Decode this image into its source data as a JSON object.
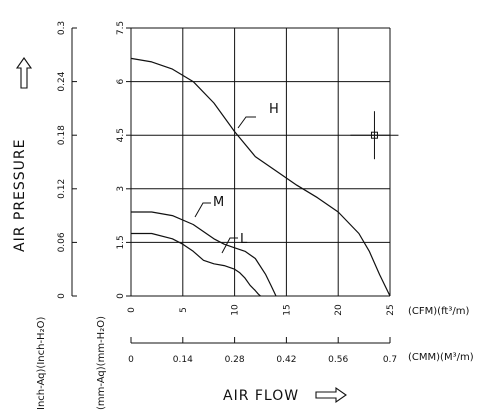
{
  "chart_data": {
    "type": "line",
    "title": "",
    "xlabel": "AIR FLOW",
    "ylabel": "AIR PRESSURE",
    "grid": true,
    "x_unit_cfm": "(CFM)(ft³/m)",
    "x_unit_cmm": "(CMM)(M³/m)",
    "y_unit_inch": "Inch-Aq)(Inch-H₂O)",
    "y_unit_mm": "(mm-Aq)(mm-H₂O)",
    "xlim": [
      0,
      25
    ],
    "ylim": [
      0,
      7.5
    ],
    "x_ticks_cfm": [
      "0",
      "5",
      "10",
      "15",
      "20",
      "25"
    ],
    "x_ticks_cmm": [
      "0",
      "0.14",
      "0.28",
      "0.42",
      "0.56",
      "0.7"
    ],
    "y_ticks_mm": [
      "0",
      "1.5",
      "3",
      "4.5",
      "6",
      "7.5"
    ],
    "y_ticks_inch": [
      "0",
      "0.06",
      "0.12",
      "0.18",
      "0.24",
      "0.3"
    ],
    "marker": {
      "x": 23.5,
      "y": 4.5
    },
    "series": [
      {
        "name": "H",
        "color": "#111111",
        "x": [
          0,
          2,
          4,
          6,
          8,
          10,
          12,
          14,
          16,
          18,
          20,
          22,
          23,
          24,
          25
        ],
        "y": [
          6.65,
          6.55,
          6.35,
          6.0,
          5.4,
          4.6,
          3.9,
          3.5,
          3.1,
          2.75,
          2.35,
          1.75,
          1.25,
          0.6,
          0
        ]
      },
      {
        "name": "M",
        "color": "#111111",
        "x": [
          0,
          2,
          4,
          6,
          8,
          9,
          10,
          11,
          12,
          13,
          13.5,
          14
        ],
        "y": [
          2.35,
          2.35,
          2.25,
          2.0,
          1.6,
          1.45,
          1.35,
          1.25,
          1.05,
          0.6,
          0.3,
          0
        ]
      },
      {
        "name": "L",
        "color": "#111111",
        "x": [
          0,
          2,
          4,
          5,
          6,
          7,
          8,
          9,
          10,
          10.5,
          11,
          11.5,
          12,
          12.3,
          12.5
        ],
        "y": [
          1.75,
          1.75,
          1.6,
          1.45,
          1.25,
          1.0,
          0.9,
          0.85,
          0.75,
          0.65,
          0.5,
          0.3,
          0.15,
          0.05,
          0
        ]
      }
    ]
  }
}
